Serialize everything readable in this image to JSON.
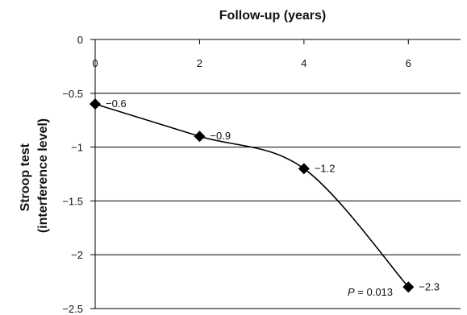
{
  "chart_data": {
    "type": "line",
    "x_axis_label": "Follow-up (years)",
    "x_axis_position": "top",
    "y_axis_label": [
      "Stroop test",
      "(interference level)"
    ],
    "x_ticks": [
      "0",
      "2",
      "4",
      "6"
    ],
    "y_ticks": [
      "0",
      "−0.5",
      "−1",
      "−1.5",
      "−2",
      "−2.5"
    ],
    "xlim": [
      0,
      7
    ],
    "ylim": [
      -2.5,
      0
    ],
    "grid": "horizontal",
    "series": [
      {
        "x": [
          0,
          2,
          4,
          6
        ],
        "y": [
          -0.6,
          -0.9,
          -1.2,
          -2.3
        ],
        "labels": [
          "−0.6",
          "−0.9",
          "−1.2",
          "−2.3"
        ],
        "marker": "diamond",
        "line": "smooth",
        "color": "#000000"
      }
    ],
    "annotation": {
      "p_symbol": "P",
      "p_rest": " = 0.013"
    }
  }
}
